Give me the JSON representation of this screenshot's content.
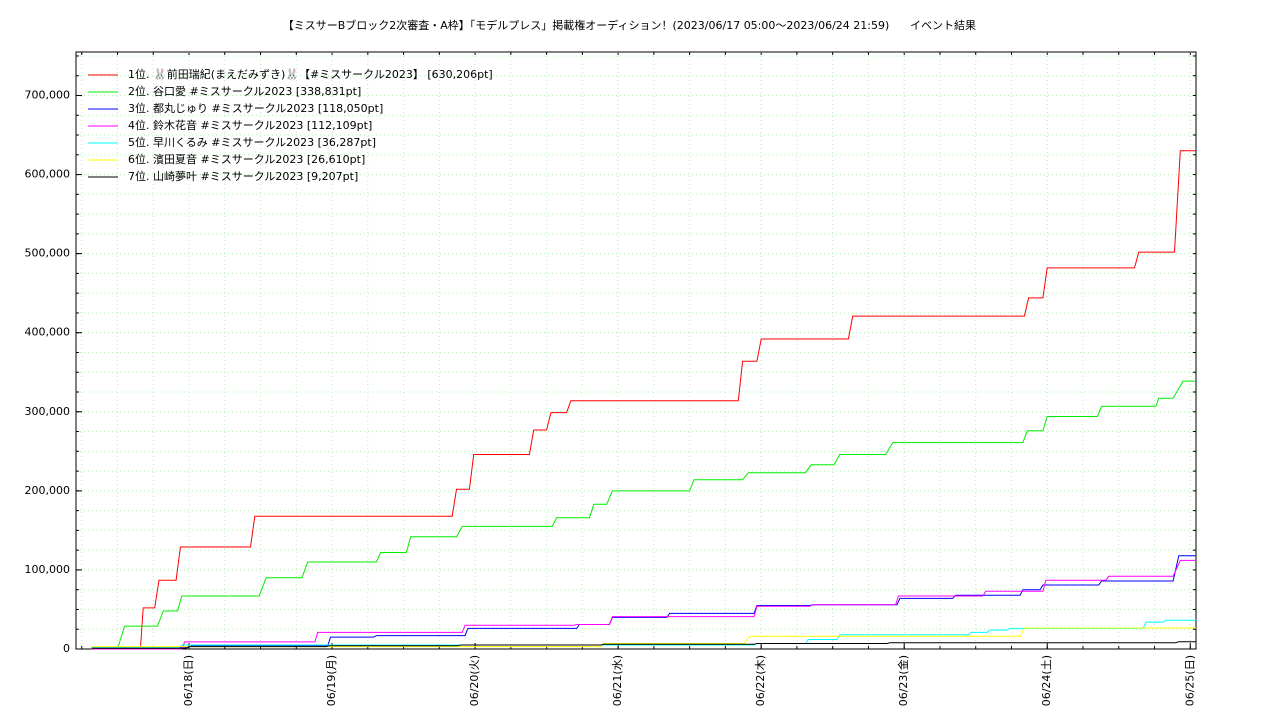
{
  "chart_data": {
    "type": "line",
    "title": "【ミスサーBブロック2次審査・A枠】「モデルプレス」掲載権オーディション！(2023/06/17 05:00〜2023/06/24 21:59)",
    "subtitle": "イベント結果",
    "xlim": [
      0.21,
      8.04
    ],
    "xticks": [
      {
        "value": 1,
        "label": "06/18(日)"
      },
      {
        "value": 2,
        "label": "06/19(月)"
      },
      {
        "value": 3,
        "label": "06/20(火)"
      },
      {
        "value": 4,
        "label": "06/21(水)"
      },
      {
        "value": 5,
        "label": "06/22(木)"
      },
      {
        "value": 6,
        "label": "06/23(金)"
      },
      {
        "value": 7,
        "label": "06/24(土)"
      },
      {
        "value": 8,
        "label": "06/25(日)"
      }
    ],
    "ylim": [
      0,
      755000
    ],
    "yticks": [
      0,
      {
        "value": 100000,
        "label": "100,000"
      },
      {
        "value": 200000,
        "label": "200,000"
      },
      {
        "value": 300000,
        "label": "300,000"
      },
      {
        "value": 400000,
        "label": "400,000"
      },
      {
        "value": 500000,
        "label": "500,000"
      },
      {
        "value": 600000,
        "label": "600,000"
      },
      {
        "value": 700000,
        "label": "700,000"
      }
    ],
    "grid": true,
    "legend": "upper-left",
    "series": [
      {
        "name": "1位. 🐰前田瑞紀(まえだみずき)🐰【#ミスサークル2023】 [630,206pt]",
        "color": "#ff0000",
        "x": [
          0.32,
          0.66,
          0.68,
          0.76,
          0.79,
          0.91,
          0.94,
          1.43,
          1.46,
          2.84,
          2.87,
          2.96,
          2.99,
          3.38,
          3.41,
          3.5,
          3.53,
          3.64,
          3.67,
          4.84,
          4.87,
          4.97,
          5.0,
          5.61,
          5.64,
          6.84,
          6.87,
          6.97,
          7.0,
          7.61,
          7.64,
          7.89,
          7.93,
          8.04
        ],
        "values": [
          0,
          0,
          52000,
          52000,
          87000,
          87000,
          129000,
          129000,
          168000,
          168000,
          202000,
          202000,
          246000,
          246000,
          277000,
          277000,
          299000,
          299000,
          314000,
          314000,
          364000,
          364000,
          392000,
          392000,
          421000,
          421000,
          444000,
          444000,
          482000,
          482000,
          502000,
          502000,
          630206,
          630206
        ]
      },
      {
        "name": "2位. 谷口愛 #ミスサークル2023 [338,831pt]",
        "color": "#00ee00",
        "x": [
          0.32,
          0.5,
          0.55,
          0.78,
          0.82,
          0.92,
          0.95,
          1.49,
          1.54,
          1.79,
          1.83,
          2.31,
          2.34,
          2.52,
          2.55,
          2.87,
          2.91,
          3.54,
          3.57,
          3.8,
          3.83,
          3.92,
          3.96,
          4.5,
          4.53,
          4.87,
          4.91,
          5.31,
          5.35,
          5.51,
          5.55,
          5.87,
          5.92,
          6.83,
          6.86,
          6.97,
          7.0,
          7.35,
          7.38,
          7.76,
          7.78,
          7.88,
          7.95,
          8.04
        ],
        "values": [
          0,
          0,
          29000,
          29000,
          48000,
          48000,
          67000,
          67000,
          90000,
          90000,
          110000,
          110000,
          122000,
          122000,
          142000,
          142000,
          155000,
          155000,
          166000,
          166000,
          183000,
          183000,
          200000,
          200000,
          214000,
          214000,
          223000,
          223000,
          233000,
          233000,
          246000,
          246000,
          261000,
          261000,
          276000,
          276000,
          294000,
          294000,
          307000,
          307000,
          317000,
          317000,
          338831,
          338831
        ]
      },
      {
        "name": "3位. 都丸じゅり #ミスサークル2023 [118,050pt]",
        "color": "#0000ff",
        "x": [
          0.32,
          1.0,
          1.02,
          1.97,
          1.99,
          2.29,
          2.31,
          2.93,
          2.95,
          3.71,
          3.73,
          3.94,
          3.96,
          4.34,
          4.36,
          4.95,
          4.97,
          5.34,
          5.36,
          5.95,
          5.97,
          6.34,
          6.36,
          6.81,
          6.83,
          6.95,
          6.97,
          7.36,
          7.38,
          7.88,
          7.92,
          8.04
        ],
        "values": [
          2000,
          2000,
          4000,
          4000,
          15000,
          15000,
          17000,
          17000,
          26000,
          26000,
          31000,
          31000,
          40000,
          40000,
          45000,
          45000,
          55000,
          55000,
          56000,
          56000,
          64000,
          64000,
          68000,
          68000,
          75000,
          75000,
          81000,
          81000,
          86000,
          86000,
          118050,
          118050
        ]
      },
      {
        "name": "4位. 鈴木花音 #ミスサークル2023 [112,109pt]",
        "color": "#ff00ff",
        "x": [
          0.32,
          0.95,
          0.97,
          1.88,
          1.9,
          2.91,
          2.93,
          3.69,
          3.71,
          3.94,
          3.96,
          4.95,
          4.97,
          5.34,
          5.36,
          5.94,
          5.96,
          6.55,
          6.57,
          6.97,
          6.99,
          7.41,
          7.43,
          7.88,
          7.93,
          8.04
        ],
        "values": [
          0,
          0,
          9000,
          9000,
          21000,
          21000,
          30000,
          30000,
          31000,
          31000,
          41000,
          41000,
          54000,
          54000,
          56000,
          56000,
          67000,
          67000,
          73000,
          73000,
          87000,
          87000,
          92000,
          92000,
          112109,
          112109
        ]
      },
      {
        "name": "5位. 早川くるみ #ミスサークル2023 [36,287pt]",
        "color": "#00ffff",
        "x": [
          0.32,
          0.93,
          0.95,
          4.95,
          4.97,
          5.31,
          5.33,
          5.53,
          5.55,
          6.45,
          6.47,
          6.58,
          6.6,
          6.72,
          6.74,
          7.67,
          7.69,
          7.81,
          7.83,
          8.04
        ],
        "values": [
          2000,
          2000,
          5000,
          5000,
          7000,
          7000,
          12000,
          12000,
          18000,
          18000,
          21000,
          21000,
          24000,
          24000,
          26000,
          26000,
          34000,
          34000,
          36287,
          36287
        ]
      },
      {
        "name": "6位. 濱田夏音 #ミスサークル2023 [26,610pt]",
        "color": "#ffff00",
        "x": [
          0.32,
          3.88,
          3.9,
          4.88,
          4.92,
          6.81,
          6.84,
          8.04
        ],
        "values": [
          3000,
          3000,
          7000,
          7000,
          16000,
          16000,
          26610,
          26610
        ]
      },
      {
        "name": "7位. 山崎夢叶 #ミスサークル2023 [9,207pt]",
        "color": "#000000",
        "x": [
          0.32,
          0.98,
          1.0,
          1.96,
          1.98,
          2.88,
          2.9,
          3.88,
          3.9,
          4.95,
          4.97,
          5.88,
          5.9,
          7.9,
          7.92,
          8.04
        ],
        "values": [
          1000,
          1000,
          3000,
          3000,
          4000,
          4000,
          5000,
          5000,
          6000,
          6000,
          7000,
          7000,
          8000,
          8000,
          9207,
          9207
        ]
      }
    ]
  }
}
